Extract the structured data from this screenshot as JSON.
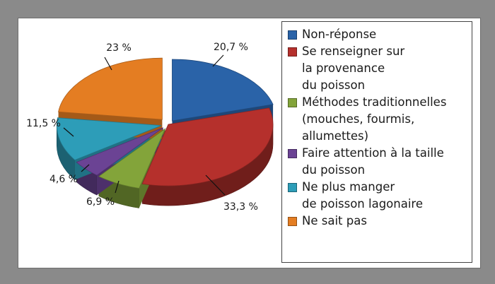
{
  "chart_data": {
    "type": "pie",
    "style": "3d-exploded",
    "slices": [
      {
        "label": "Non-réponse",
        "value": 20.7,
        "value_label": "20,7 %",
        "color": "#2a63a8"
      },
      {
        "label": "Se renseigner sur\nla provenance\ndu poisson",
        "value": 33.3,
        "value_label": "33,3 %",
        "color": "#b5302c"
      },
      {
        "label": "Méthodes traditionnelles\n(mouches, fourmis,\nallumettes)",
        "value": 6.9,
        "value_label": "6,9 %",
        "color": "#83a43a"
      },
      {
        "label": "Faire attention à la taille\ndu poisson",
        "value": 4.6,
        "value_label": "4,6 %",
        "color": "#6b4394"
      },
      {
        "label": "Ne plus manger\nde poisson lagonaire",
        "value": 11.5,
        "value_label": "11,5 %",
        "color": "#2d9db8"
      },
      {
        "label": "Ne sait pas",
        "value": 23,
        "value_label": "23 %",
        "color": "#e47d22"
      }
    ],
    "legend_position": "right",
    "title": ""
  }
}
